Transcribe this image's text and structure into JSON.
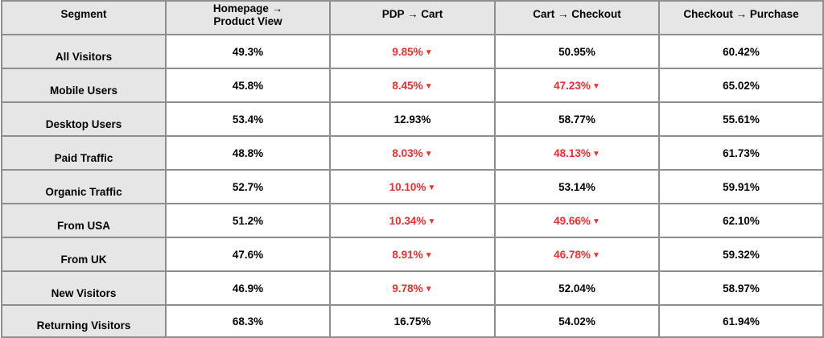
{
  "chart_data": {
    "type": "table",
    "headers": [
      "Segment",
      "Homepage → Product View",
      "PDP → Cart",
      "Cart → Checkout",
      "Checkout → Purchase"
    ],
    "rows": [
      {
        "segment": "All Visitors",
        "values": [
          "49.3%",
          "9.85%",
          "50.95%",
          "60.42%"
        ],
        "flags": [
          false,
          true,
          false,
          false
        ]
      },
      {
        "segment": "Mobile Users",
        "values": [
          "45.8%",
          "8.45%",
          "47.23%",
          "65.02%"
        ],
        "flags": [
          false,
          true,
          true,
          false
        ]
      },
      {
        "segment": "Desktop Users",
        "values": [
          "53.4%",
          "12.93%",
          "58.77%",
          "55.61%"
        ],
        "flags": [
          false,
          false,
          false,
          false
        ]
      },
      {
        "segment": "Paid Traffic",
        "values": [
          "48.8%",
          "8.03%",
          "48.13%",
          "61.73%"
        ],
        "flags": [
          false,
          true,
          true,
          false
        ]
      },
      {
        "segment": "Organic Traffic",
        "values": [
          "52.7%",
          "10.10%",
          "53.14%",
          "59.91%"
        ],
        "flags": [
          false,
          true,
          false,
          false
        ]
      },
      {
        "segment": "From USA",
        "values": [
          "51.2%",
          "10.34%",
          "49.66%",
          "62.10%"
        ],
        "flags": [
          false,
          true,
          true,
          false
        ]
      },
      {
        "segment": "From UK",
        "values": [
          "47.6%",
          "8.91%",
          "46.78%",
          "59.32%"
        ],
        "flags": [
          false,
          true,
          true,
          false
        ]
      },
      {
        "segment": "New Visitors",
        "values": [
          "46.9%",
          "9.78%",
          "52.04%",
          "58.97%"
        ],
        "flags": [
          false,
          true,
          false,
          false
        ]
      },
      {
        "segment": "Returning Visitors",
        "values": [
          "68.3%",
          "16.75%",
          "54.02%",
          "61.94%"
        ],
        "flags": [
          false,
          false,
          false,
          false
        ]
      }
    ],
    "flag_marker": "down-triangle-icon",
    "colors": {
      "flag": "#ef2d2d",
      "header_bg": "#e6e6e6",
      "border": "#8e8e8e",
      "text": "#000000"
    }
  }
}
